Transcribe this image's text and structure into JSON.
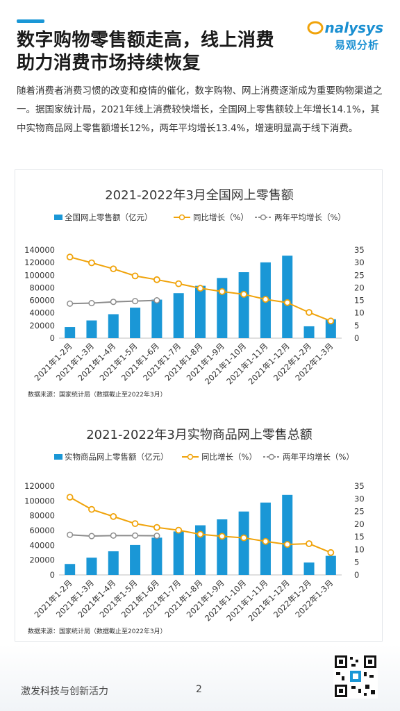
{
  "header": {
    "title_line1": "数字购物零售额走高，线上消费",
    "title_line2": "助力消费市场持续恢复",
    "logo_text": "nalysys",
    "logo_sub": "易观分析"
  },
  "paragraph": "随着消费者消费习惯的改变和疫情的催化，数字购物、网上消费逐渐成为重要购物渠道之一。据国家统计局，2021年线上消费较快增长，全国网上零售额较上年增长14.1%，其中实物商品网上零售额增长12%，两年平均增长13.4%，增速明显高于线下消费。",
  "colors": {
    "bar": "#1a97d6",
    "yoy": "#f0a30a",
    "avg2y": "#8c8c8c",
    "accent": "#1a97d6"
  },
  "chart_data": [
    {
      "type": "bar",
      "title": "2021-2022年3月全国网上零售额",
      "source": "数据来源：国家统计局（数据截止至2022年3月）",
      "categories": [
        "2021年1-2月",
        "2021年1-3月",
        "2021年1-4月",
        "2021年1-5月",
        "2021年1-6月",
        "2021年1-7月",
        "2021年1-8月",
        "2021年1-9月",
        "2021年1-10月",
        "2021年1-11月",
        "2021年1-12月",
        "2022年1-2月",
        "2022年1-3月"
      ],
      "series": [
        {
          "name": "全国网上零售额（亿元）",
          "kind": "bar",
          "axis": "left",
          "values": [
            17587,
            28093,
            38015,
            48409,
            61133,
            71429,
            83100,
            95500,
            104700,
            120300,
            130900,
            18800,
            30000
          ]
        },
        {
          "name": "同比增长（%）",
          "kind": "line",
          "axis": "right",
          "values": [
            32.2,
            29.9,
            27.5,
            24.7,
            23.2,
            21.6,
            19.8,
            18.5,
            17.4,
            15.4,
            14.1,
            10.2,
            6.8
          ]
        },
        {
          "name": "两年平均增长（%）",
          "kind": "line",
          "axis": "right",
          "values": [
            13.7,
            13.9,
            14.4,
            14.7,
            15.0,
            null,
            null,
            null,
            null,
            null,
            null,
            null,
            null
          ]
        }
      ],
      "left_ticks": [
        "0",
        "20000",
        "40000",
        "60000",
        "80000",
        "100000",
        "120000",
        "140000"
      ],
      "right_ticks": [
        "0",
        "5",
        "10",
        "15",
        "20",
        "25",
        "30",
        "35"
      ],
      "ylim_left": [
        0,
        140000
      ],
      "ylim_right": [
        0,
        35
      ]
    },
    {
      "type": "bar",
      "title": "2021-2022年3月实物商品网上零售总额",
      "source": "数据来源：国家统计局（数据截止至2022年3月）",
      "categories": [
        "2021年1-2月",
        "2021年1-3月",
        "2021年1-4月",
        "2021年1-5月",
        "2021年1-6月",
        "2021年1-7月",
        "2021年1-8月",
        "2021年1-9月",
        "2021年1-10月",
        "2021年1-11月",
        "2021年1-12月",
        "2022年1-2月",
        "2022年1-3月"
      ],
      "series": [
        {
          "name": "实物商品网上零售额（亿元）",
          "kind": "bar",
          "axis": "left",
          "values": [
            14776,
            23300,
            31900,
            40400,
            50300,
            58700,
            67000,
            75000,
            85600,
            97700,
            108000,
            16700,
            25700
          ]
        },
        {
          "name": "同比增长（%）",
          "kind": "line",
          "axis": "right",
          "values": [
            30.6,
            25.8,
            23.0,
            20.2,
            18.7,
            17.6,
            16.0,
            15.2,
            14.6,
            13.2,
            12.0,
            12.3,
            8.8
          ]
        },
        {
          "name": "两年平均增长（%）",
          "kind": "line",
          "axis": "right",
          "values": [
            15.8,
            15.3,
            15.5,
            15.5,
            15.4,
            null,
            null,
            null,
            null,
            null,
            null,
            null,
            null
          ]
        }
      ],
      "left_ticks": [
        "0",
        "20000",
        "40000",
        "60000",
        "80000",
        "100000",
        "120000"
      ],
      "right_ticks": [
        "0",
        "5",
        "10",
        "15",
        "20",
        "25",
        "30",
        "35"
      ],
      "ylim_left": [
        0,
        120000
      ],
      "ylim_right": [
        0,
        35
      ]
    }
  ],
  "footer": {
    "text": "激发科技与创新活力",
    "page": "2"
  }
}
